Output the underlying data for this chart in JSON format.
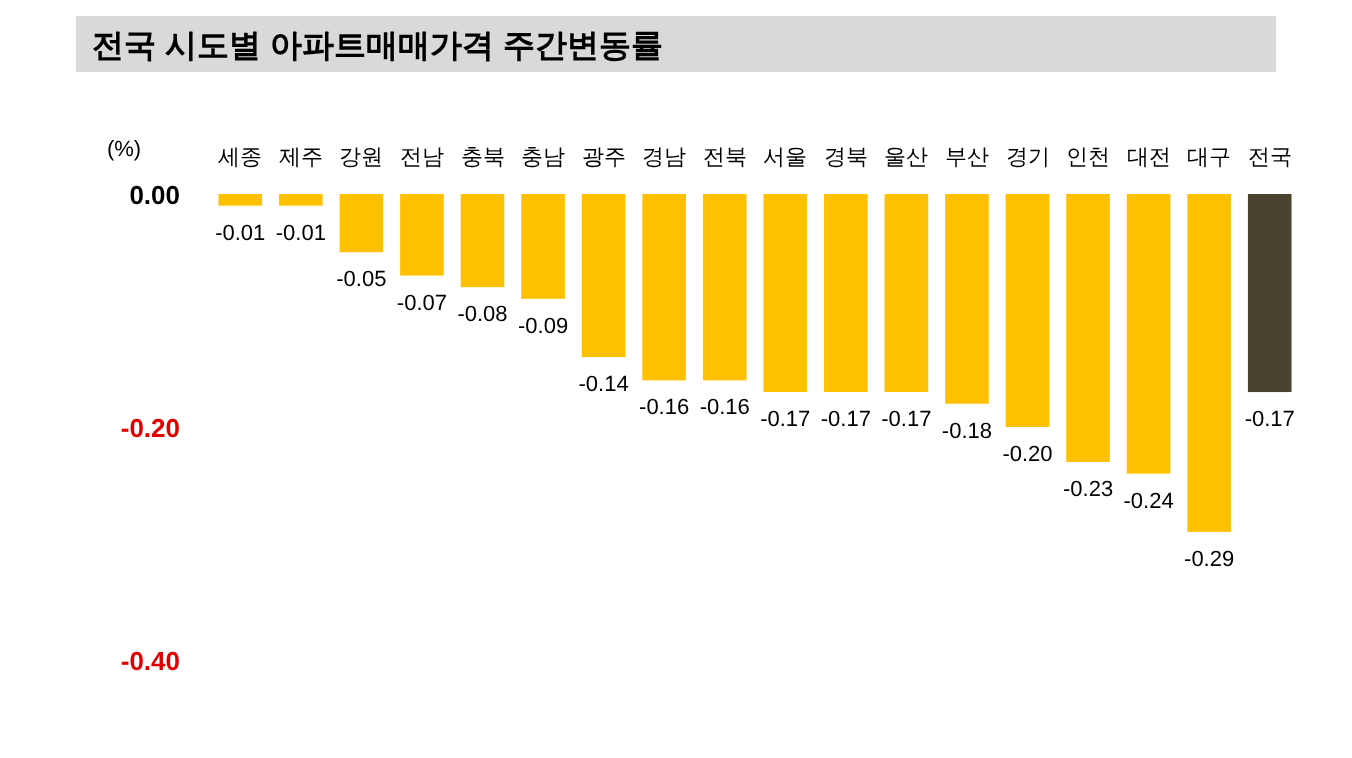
{
  "chart_data": {
    "type": "bar",
    "title": "전국 시도별 아파트매매가격 주간변동률",
    "ylabel": "(%)",
    "categories": [
      "세종",
      "제주",
      "강원",
      "전남",
      "충북",
      "충남",
      "광주",
      "경남",
      "전북",
      "서울",
      "경북",
      "울산",
      "부산",
      "경기",
      "인천",
      "대전",
      "대구",
      "전국"
    ],
    "values": [
      -0.01,
      -0.01,
      -0.05,
      -0.07,
      -0.08,
      -0.09,
      -0.14,
      -0.16,
      -0.16,
      -0.17,
      -0.17,
      -0.17,
      -0.18,
      -0.2,
      -0.23,
      -0.24,
      -0.29,
      -0.17
    ],
    "value_labels": [
      "-0.01",
      "-0.01",
      "-0.05",
      "-0.07",
      "-0.08",
      "-0.09",
      "-0.14",
      "-0.16",
      "-0.16",
      "-0.17",
      "-0.17",
      "-0.17",
      "-0.18",
      "-0.20",
      "-0.23",
      "-0.24",
      "-0.29",
      "-0.17"
    ],
    "colors": [
      "#ffc000",
      "#ffc000",
      "#ffc000",
      "#ffc000",
      "#ffc000",
      "#ffc000",
      "#ffc000",
      "#ffc000",
      "#ffc000",
      "#ffc000",
      "#ffc000",
      "#ffc000",
      "#ffc000",
      "#ffc000",
      "#ffc000",
      "#ffc000",
      "#ffc000",
      "#4a4330"
    ],
    "ylim": [
      -0.4,
      0
    ],
    "yticks": [
      {
        "value": 0,
        "label": "0.00"
      },
      {
        "value": -0.2,
        "label": "-0.20"
      },
      {
        "value": -0.4,
        "label": "-0.40"
      }
    ]
  }
}
